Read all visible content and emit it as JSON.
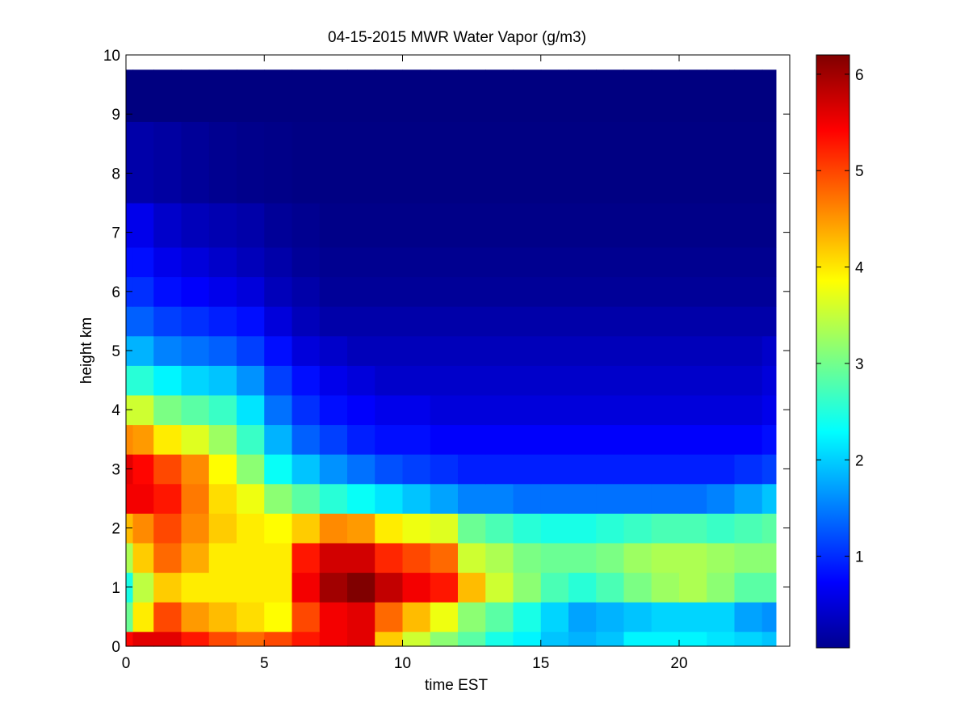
{
  "chart_data": {
    "type": "heatmap",
    "title": "04-15-2015 MWR Water Vapor (g/m3)",
    "xlabel": "time EST",
    "ylabel": "height km",
    "xlim": [
      0,
      24
    ],
    "ylim": [
      0,
      10
    ],
    "x_ticks": [
      "0",
      "5",
      "10",
      "15",
      "20"
    ],
    "y_ticks": [
      "0",
      "1",
      "2",
      "3",
      "4",
      "5",
      "6",
      "7",
      "8",
      "9",
      "10"
    ],
    "colorbar": {
      "range": [
        0.05,
        6.2
      ],
      "ticks": [
        "1",
        "2",
        "3",
        "4",
        "5",
        "6"
      ],
      "colormap": "jet"
    },
    "time_hours": [
      0.0,
      0.5,
      1.5,
      2.5,
      3.5,
      4.5,
      5.5,
      6.5,
      7.5,
      8.5,
      9.5,
      10.5,
      11.5,
      12.5,
      13.5,
      14.5,
      15.5,
      16.5,
      17.5,
      18.5,
      19.5,
      20.5,
      21.5,
      22.5,
      23.5
    ],
    "height_km": [
      0.0,
      0.5,
      1.0,
      1.5,
      2.0,
      2.5,
      3.0,
      3.5,
      4.0,
      4.5,
      5.0,
      5.5,
      6.0,
      6.5,
      7.0,
      8.0,
      9.75
    ],
    "water_vapor_g_m3": [
      [
        5.4,
        5.6,
        5.6,
        5.3,
        5.0,
        4.8,
        5.0,
        5.3,
        5.5,
        5.6,
        4.2,
        3.6,
        3.2,
        2.9,
        2.5,
        2.3,
        2.0,
        1.9,
        2.0,
        2.3,
        2.3,
        2.3,
        2.2,
        2.1,
        2.0
      ],
      [
        3.0,
        4.0,
        5.0,
        4.5,
        4.3,
        4.1,
        3.9,
        5.0,
        5.5,
        5.6,
        4.8,
        4.3,
        3.8,
        3.2,
        2.9,
        2.5,
        2.1,
        1.8,
        1.9,
        2.0,
        2.1,
        2.1,
        2.1,
        1.8,
        1.7
      ],
      [
        2.5,
        3.5,
        4.2,
        4.0,
        4.0,
        4.0,
        4.0,
        5.5,
        6.0,
        6.2,
        5.8,
        5.5,
        5.3,
        4.3,
        3.6,
        3.2,
        2.8,
        2.6,
        2.8,
        3.1,
        3.3,
        3.4,
        3.2,
        2.9,
        2.9
      ],
      [
        3.4,
        4.2,
        4.8,
        4.4,
        4.0,
        4.0,
        4.0,
        5.3,
        5.7,
        5.7,
        5.2,
        5.0,
        4.8,
        3.6,
        3.4,
        3.1,
        3.0,
        3.0,
        3.1,
        3.3,
        3.4,
        3.4,
        3.3,
        3.2,
        3.2
      ],
      [
        4.3,
        4.6,
        5.0,
        4.6,
        4.2,
        4.0,
        3.9,
        4.2,
        4.6,
        4.5,
        4.0,
        3.8,
        3.7,
        3.0,
        2.8,
        2.6,
        2.5,
        2.5,
        2.6,
        2.7,
        2.8,
        2.8,
        2.7,
        2.8,
        2.9
      ],
      [
        5.5,
        5.5,
        5.3,
        4.7,
        4.1,
        3.8,
        3.2,
        2.9,
        2.6,
        2.4,
        2.2,
        2.0,
        1.8,
        1.6,
        1.6,
        1.5,
        1.5,
        1.5,
        1.5,
        1.5,
        1.5,
        1.5,
        1.6,
        1.8,
        2.0
      ],
      [
        5.6,
        5.4,
        5.0,
        4.6,
        3.9,
        3.2,
        2.4,
        2.0,
        1.7,
        1.5,
        1.3,
        1.2,
        1.1,
        1.0,
        1.0,
        1.0,
        1.0,
        1.0,
        1.0,
        1.0,
        1.0,
        1.0,
        1.0,
        1.1,
        1.2
      ],
      [
        4.6,
        4.5,
        4.0,
        3.7,
        3.3,
        2.7,
        1.9,
        1.4,
        1.2,
        1.0,
        0.9,
        0.9,
        0.8,
        0.8,
        0.8,
        0.8,
        0.8,
        0.8,
        0.8,
        0.8,
        0.8,
        0.8,
        0.8,
        0.8,
        0.9
      ],
      [
        3.6,
        3.6,
        3.1,
        2.9,
        2.7,
        2.2,
        1.5,
        1.1,
        0.9,
        0.8,
        0.7,
        0.7,
        0.6,
        0.6,
        0.6,
        0.6,
        0.6,
        0.6,
        0.6,
        0.6,
        0.6,
        0.6,
        0.6,
        0.6,
        0.7
      ],
      [
        2.6,
        2.6,
        2.3,
        2.1,
        2.0,
        1.7,
        1.2,
        0.9,
        0.7,
        0.6,
        0.5,
        0.5,
        0.5,
        0.5,
        0.5,
        0.5,
        0.5,
        0.5,
        0.5,
        0.5,
        0.5,
        0.5,
        0.5,
        0.5,
        0.6
      ],
      [
        1.9,
        1.9,
        1.6,
        1.5,
        1.4,
        1.2,
        0.9,
        0.6,
        0.5,
        0.4,
        0.4,
        0.4,
        0.4,
        0.4,
        0.4,
        0.4,
        0.4,
        0.4,
        0.4,
        0.4,
        0.4,
        0.4,
        0.4,
        0.4,
        0.5
      ],
      [
        1.4,
        1.4,
        1.2,
        1.1,
        1.0,
        0.9,
        0.6,
        0.4,
        0.3,
        0.3,
        0.3,
        0.3,
        0.3,
        0.3,
        0.3,
        0.3,
        0.3,
        0.3,
        0.3,
        0.3,
        0.3,
        0.3,
        0.3,
        0.3,
        0.3
      ],
      [
        1.1,
        1.1,
        0.9,
        0.8,
        0.7,
        0.6,
        0.4,
        0.3,
        0.2,
        0.2,
        0.2,
        0.2,
        0.2,
        0.2,
        0.2,
        0.2,
        0.2,
        0.2,
        0.2,
        0.2,
        0.2,
        0.2,
        0.2,
        0.2,
        0.2
      ],
      [
        0.9,
        0.9,
        0.7,
        0.6,
        0.5,
        0.4,
        0.3,
        0.2,
        0.15,
        0.15,
        0.15,
        0.15,
        0.15,
        0.15,
        0.15,
        0.15,
        0.15,
        0.15,
        0.15,
        0.15,
        0.15,
        0.15,
        0.15,
        0.15,
        0.15
      ],
      [
        0.7,
        0.7,
        0.5,
        0.4,
        0.35,
        0.3,
        0.2,
        0.15,
        0.1,
        0.1,
        0.1,
        0.1,
        0.1,
        0.1,
        0.1,
        0.1,
        0.1,
        0.1,
        0.1,
        0.1,
        0.1,
        0.1,
        0.1,
        0.1,
        0.1
      ],
      [
        0.3,
        0.3,
        0.25,
        0.2,
        0.15,
        0.12,
        0.1,
        0.08,
        0.07,
        0.07,
        0.07,
        0.07,
        0.07,
        0.07,
        0.07,
        0.07,
        0.07,
        0.07,
        0.07,
        0.07,
        0.07,
        0.07,
        0.07,
        0.07,
        0.07
      ],
      [
        0.05,
        0.05,
        0.05,
        0.05,
        0.05,
        0.05,
        0.05,
        0.05,
        0.05,
        0.05,
        0.05,
        0.05,
        0.05,
        0.05,
        0.05,
        0.05,
        0.05,
        0.05,
        0.05,
        0.05,
        0.05,
        0.05,
        0.05,
        0.05,
        0.05
      ]
    ]
  }
}
